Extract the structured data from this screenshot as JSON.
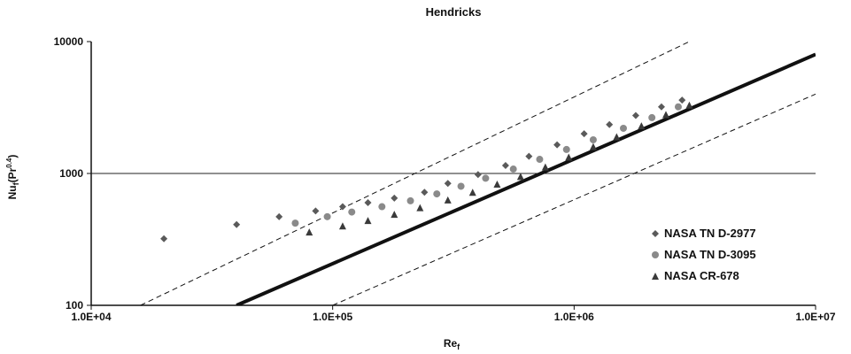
{
  "chart_data": {
    "type": "scatter",
    "title": "Hendricks",
    "xlabel": "Re",
    "xlabel_sub": "f",
    "ylabel": "Nu",
    "ylabel_sub": "f",
    "ylabel_rest": "(Pr",
    "ylabel_sup": "0.4",
    "ylabel_end": ")",
    "x_scale": "log",
    "y_scale": "log",
    "xlim": [
      10000,
      10000000
    ],
    "ylim": [
      100,
      10000
    ],
    "x_ticks": [
      {
        "value": 10000,
        "label": "1.0E+04"
      },
      {
        "value": 100000,
        "label": "1.0E+05"
      },
      {
        "value": 1000000,
        "label": "1.0E+06"
      },
      {
        "value": 10000000,
        "label": "1.0E+07"
      }
    ],
    "y_ticks": [
      {
        "value": 100,
        "label": "100"
      },
      {
        "value": 1000,
        "label": "1000"
      },
      {
        "value": 10000,
        "label": "10000"
      }
    ],
    "grid": "horizontal",
    "legend_position": "bottom-right",
    "series": [
      {
        "name": "NASA TN D-2977",
        "marker": "diamond",
        "color": "#5a5a5a",
        "points": [
          [
            20000,
            320
          ],
          [
            40000,
            410
          ],
          [
            60000,
            470
          ],
          [
            85000,
            520
          ],
          [
            110000,
            560
          ],
          [
            140000,
            600
          ],
          [
            180000,
            650
          ],
          [
            240000,
            720
          ],
          [
            300000,
            840
          ],
          [
            400000,
            980
          ],
          [
            520000,
            1150
          ],
          [
            650000,
            1350
          ],
          [
            850000,
            1650
          ],
          [
            1100000,
            2000
          ],
          [
            1400000,
            2350
          ],
          [
            1800000,
            2750
          ],
          [
            2300000,
            3200
          ],
          [
            2800000,
            3600
          ]
        ]
      },
      {
        "name": "NASA TN D-3095",
        "marker": "circle",
        "color": "#8a8a8a",
        "points": [
          [
            70000,
            420
          ],
          [
            95000,
            470
          ],
          [
            120000,
            510
          ],
          [
            160000,
            560
          ],
          [
            210000,
            620
          ],
          [
            270000,
            700
          ],
          [
            340000,
            800
          ],
          [
            430000,
            920
          ],
          [
            560000,
            1080
          ],
          [
            720000,
            1280
          ],
          [
            930000,
            1520
          ],
          [
            1200000,
            1800
          ],
          [
            1600000,
            2200
          ],
          [
            2100000,
            2650
          ],
          [
            2700000,
            3200
          ]
        ]
      },
      {
        "name": "NASA CR-678",
        "marker": "triangle",
        "color": "#3a3a3a",
        "points": [
          [
            80000,
            360
          ],
          [
            110000,
            400
          ],
          [
            140000,
            440
          ],
          [
            180000,
            490
          ],
          [
            230000,
            550
          ],
          [
            300000,
            630
          ],
          [
            380000,
            720
          ],
          [
            480000,
            830
          ],
          [
            600000,
            950
          ],
          [
            760000,
            1120
          ],
          [
            950000,
            1330
          ],
          [
            1200000,
            1600
          ],
          [
            1500000,
            1900
          ],
          [
            1900000,
            2300
          ],
          [
            2400000,
            2800
          ],
          [
            3000000,
            3300
          ]
        ]
      }
    ],
    "lines": [
      {
        "name": "correlation",
        "style": "solid",
        "points": [
          [
            40000,
            100
          ],
          [
            10000000,
            8000
          ]
        ]
      },
      {
        "name": "upper bound",
        "style": "dashed",
        "points": [
          [
            16000,
            100
          ],
          [
            3000000,
            10000
          ]
        ]
      },
      {
        "name": "lower bound",
        "style": "dashed",
        "points": [
          [
            100000,
            100
          ],
          [
            10000000,
            4000
          ]
        ]
      }
    ]
  }
}
